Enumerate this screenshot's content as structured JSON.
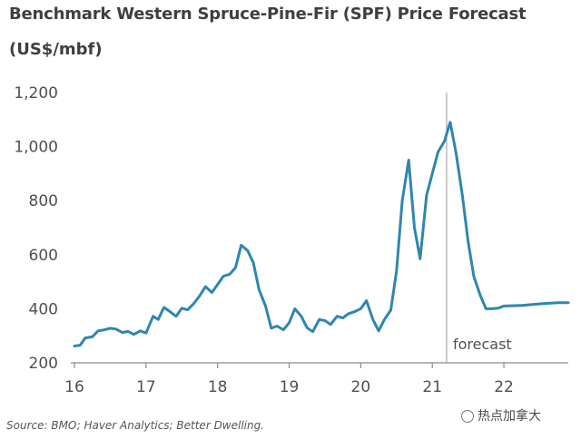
{
  "chart_data": {
    "type": "line",
    "title": "Benchmark Western Spruce-Pine-Fir (SPF) Price Forecast",
    "ylabel": "(US$/mbf)",
    "xlabel": "",
    "ylim": [
      200,
      1200
    ],
    "xlim": [
      16,
      22.9
    ],
    "y_ticks": [
      200,
      400,
      600,
      800,
      1000,
      1200
    ],
    "y_tick_labels": [
      "200",
      "400",
      "600",
      "800",
      "1,000",
      "1,200"
    ],
    "x_ticks": [
      16,
      17,
      18,
      19,
      20,
      21,
      22
    ],
    "x_tick_labels": [
      "16",
      "17",
      "18",
      "19",
      "20",
      "21",
      "22"
    ],
    "grid": false,
    "series_color": "#2f86b0",
    "forecast_start": 21.2,
    "forecast_label": "forecast",
    "series": [
      {
        "values": [
          [
            16.0,
            262
          ],
          [
            16.08,
            265
          ],
          [
            16.15,
            292
          ],
          [
            16.25,
            296
          ],
          [
            16.33,
            318
          ],
          [
            16.42,
            322
          ],
          [
            16.5,
            328
          ],
          [
            16.58,
            325
          ],
          [
            16.67,
            312
          ],
          [
            16.75,
            316
          ],
          [
            16.83,
            305
          ],
          [
            16.92,
            318
          ],
          [
            17.0,
            310
          ],
          [
            17.1,
            372
          ],
          [
            17.17,
            360
          ],
          [
            17.25,
            405
          ],
          [
            17.33,
            390
          ],
          [
            17.42,
            372
          ],
          [
            17.5,
            402
          ],
          [
            17.58,
            396
          ],
          [
            17.67,
            420
          ],
          [
            17.75,
            448
          ],
          [
            17.83,
            482
          ],
          [
            17.92,
            460
          ],
          [
            18.0,
            490
          ],
          [
            18.08,
            520
          ],
          [
            18.17,
            528
          ],
          [
            18.25,
            552
          ],
          [
            18.33,
            635
          ],
          [
            18.42,
            615
          ],
          [
            18.5,
            570
          ],
          [
            18.58,
            470
          ],
          [
            18.67,
            410
          ],
          [
            18.75,
            328
          ],
          [
            18.83,
            336
          ],
          [
            18.92,
            322
          ],
          [
            19.0,
            348
          ],
          [
            19.08,
            400
          ],
          [
            19.17,
            372
          ],
          [
            19.25,
            330
          ],
          [
            19.33,
            315
          ],
          [
            19.42,
            360
          ],
          [
            19.5,
            356
          ],
          [
            19.58,
            342
          ],
          [
            19.67,
            372
          ],
          [
            19.75,
            366
          ],
          [
            19.83,
            382
          ],
          [
            19.92,
            390
          ],
          [
            20.0,
            400
          ],
          [
            20.08,
            430
          ],
          [
            20.17,
            360
          ],
          [
            20.25,
            318
          ],
          [
            20.33,
            360
          ],
          [
            20.42,
            395
          ],
          [
            20.5,
            540
          ],
          [
            20.58,
            800
          ],
          [
            20.67,
            950
          ],
          [
            20.75,
            700
          ],
          [
            20.83,
            585
          ],
          [
            20.92,
            820
          ],
          [
            21.0,
            900
          ],
          [
            21.08,
            980
          ],
          [
            21.17,
            1020
          ],
          [
            21.25,
            1090
          ],
          [
            21.33,
            980
          ],
          [
            21.42,
            820
          ],
          [
            21.5,
            650
          ],
          [
            21.58,
            520
          ],
          [
            21.67,
            450
          ],
          [
            21.75,
            400
          ],
          [
            21.83,
            400
          ],
          [
            21.92,
            402
          ],
          [
            22.0,
            410
          ],
          [
            22.25,
            412
          ],
          [
            22.5,
            418
          ],
          [
            22.75,
            422
          ],
          [
            22.9,
            422
          ]
        ]
      }
    ],
    "source": "Source: BMO; Haver Analytics; Better Dwelling."
  },
  "watermark": {
    "text": "热点加拿大",
    "icon": "wechat-circle-icon"
  }
}
